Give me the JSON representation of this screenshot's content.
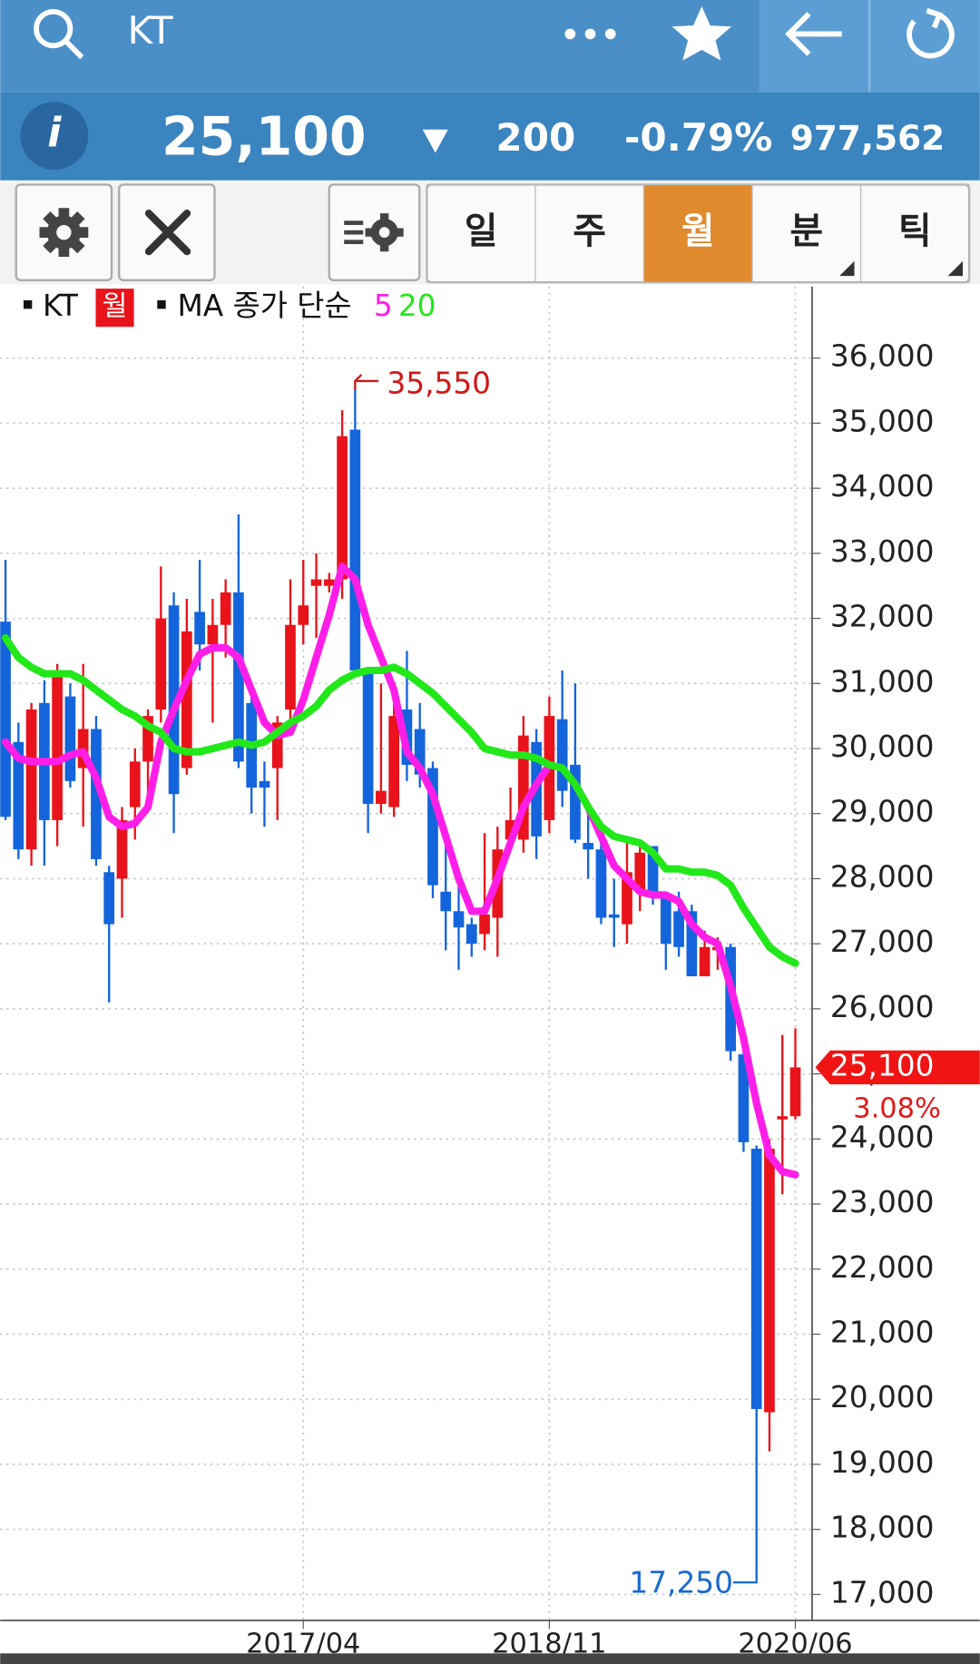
{
  "header": {
    "name": "KT",
    "price": "25,100",
    "change": "200",
    "change_pct": "-0.79%",
    "volume": "977,562"
  },
  "tabs": [
    "일",
    "주",
    "월",
    "분",
    "틱"
  ],
  "chart_data": {
    "type": "candlestick",
    "name": "KT",
    "period": "월",
    "ma_label": "MA 종가 단순",
    "categories": [
      null,
      null,
      null,
      null,
      null,
      null,
      null,
      null,
      null,
      null,
      null,
      null,
      null,
      null,
      null,
      null,
      null,
      null,
      null,
      null,
      null,
      null,
      null,
      "2017/04",
      null,
      null,
      null,
      null,
      null,
      null,
      null,
      null,
      null,
      null,
      null,
      null,
      null,
      null,
      null,
      null,
      null,
      null,
      "2018/11",
      null,
      null,
      null,
      null,
      null,
      null,
      null,
      null,
      null,
      null,
      null,
      null,
      null,
      null,
      null,
      null,
      null,
      null,
      "2020/06"
    ],
    "open": [
      31950,
      30100,
      28450,
      30700,
      28900,
      30800,
      29700,
      30300,
      28100,
      28000,
      29100,
      29800,
      30600,
      32200,
      29700,
      32100,
      31600,
      31900,
      32400,
      30700,
      29500,
      29700,
      30600,
      31900,
      32500,
      32500,
      32600,
      34900,
      31200,
      29150,
      29100,
      30600,
      30300,
      29700,
      27800,
      27500,
      27300,
      27150,
      27400,
      28600,
      28600,
      30100,
      28900,
      30450,
      29750,
      28550,
      28450,
      27450,
      27300,
      27800,
      28500,
      27700,
      27500,
      27500,
      26500,
      26900,
      26950,
      25300,
      23850,
      19800,
      24300,
      24350
    ],
    "high": [
      32900,
      30400,
      30700,
      31050,
      31300,
      31000,
      31300,
      30500,
      28200,
      29100,
      30000,
      30600,
      32800,
      32400,
      32300,
      32900,
      32300,
      32600,
      33600,
      31000,
      29800,
      30500,
      32600,
      32900,
      33000,
      32700,
      35200,
      35550,
      31200,
      31000,
      30700,
      31500,
      30700,
      29800,
      28600,
      28000,
      27400,
      28700,
      28800,
      29400,
      30500,
      30300,
      30800,
      31200,
      31000,
      29000,
      28600,
      28000,
      28600,
      28600,
      28500,
      27800,
      27800,
      27600,
      27200,
      27100,
      27000,
      25400,
      23900,
      24000,
      25600,
      25700
    ],
    "low": [
      28900,
      28300,
      28200,
      28200,
      28500,
      29400,
      28800,
      28200,
      26100,
      27400,
      28600,
      29200,
      30400,
      28700,
      29600,
      31200,
      30400,
      31400,
      29700,
      29000,
      28800,
      28900,
      30300,
      31600,
      31700,
      32400,
      32300,
      31100,
      28700,
      29000,
      28950,
      29500,
      29400,
      27700,
      26900,
      26600,
      26800,
      26900,
      26800,
      28500,
      28400,
      28300,
      28700,
      29100,
      28550,
      28000,
      27300,
      26950,
      27000,
      27500,
      27600,
      26600,
      26800,
      26500,
      26500,
      26600,
      25200,
      23800,
      17250,
      19200,
      23150,
      24300
    ],
    "close": [
      28950,
      28450,
      30600,
      28900,
      31200,
      29500,
      30300,
      28300,
      27300,
      28900,
      29800,
      30500,
      32000,
      29300,
      31800,
      31600,
      31900,
      32400,
      29800,
      29400,
      29400,
      30400,
      31900,
      32200,
      32600,
      32600,
      34800,
      31200,
      29150,
      29350,
      30500,
      29750,
      29600,
      27900,
      27500,
      27250,
      27000,
      27450,
      28450,
      28900,
      30200,
      28650,
      30500,
      29350,
      28600,
      28450,
      27400,
      27400,
      28100,
      28400,
      27750,
      27000,
      26950,
      26500,
      26950,
      26950,
      25350,
      23950,
      19850,
      23850,
      24350,
      25100
    ],
    "up_color": "#e8131b",
    "down_color": "#1464dc",
    "series": [
      {
        "name": "5",
        "color": "#ff1ee8",
        "values": [
          30100,
          29850,
          29800,
          29800,
          29800,
          29900,
          29950,
          29550,
          28950,
          28800,
          28850,
          29100,
          30100,
          30600,
          31050,
          31450,
          31550,
          31550,
          31400,
          30900,
          30400,
          30200,
          30250,
          30750,
          31400,
          32050,
          32800,
          32600,
          31900,
          31400,
          30900,
          29950,
          29700,
          29300,
          28650,
          28000,
          27500,
          27500,
          28000,
          28550,
          29100,
          29450,
          29750,
          29700,
          29450,
          29100,
          28650,
          28200,
          28000,
          27800,
          27750,
          27750,
          27650,
          27300,
          27100,
          27000,
          26350,
          25550,
          24550,
          23750,
          23500,
          23450
        ]
      },
      {
        "name": "20",
        "color": "#22e81a",
        "values": [
          31700,
          31400,
          31250,
          31150,
          31150,
          31150,
          31050,
          30900,
          30750,
          30600,
          30500,
          30350,
          30250,
          30000,
          29950,
          29950,
          30000,
          30050,
          30100,
          30050,
          30100,
          30250,
          30400,
          30500,
          30650,
          30900,
          31050,
          31150,
          31200,
          31200,
          31250,
          31150,
          31000,
          30850,
          30650,
          30450,
          30250,
          30000,
          29950,
          29900,
          29900,
          29850,
          29750,
          29700,
          29450,
          29100,
          28800,
          28650,
          28600,
          28550,
          28400,
          28150,
          28150,
          28100,
          28100,
          28050,
          27900,
          27550,
          27250,
          26950,
          26800,
          26700
        ]
      }
    ],
    "ylim": [
      16600,
      37100
    ],
    "yticks": [
      {
        "value": 17000,
        "label": "17,000"
      },
      {
        "value": 18000,
        "label": "18,000"
      },
      {
        "value": 19000,
        "label": "19,000"
      },
      {
        "value": 20000,
        "label": "20,000"
      },
      {
        "value": 21000,
        "label": "21,000"
      },
      {
        "value": 22000,
        "label": "22,000"
      },
      {
        "value": 23000,
        "label": "23,000"
      },
      {
        "value": 24000,
        "label": "24,000"
      },
      {
        "value": 25000,
        "label": "25,000"
      },
      {
        "value": 26000,
        "label": "26,000"
      },
      {
        "value": 27000,
        "label": "27,000"
      },
      {
        "value": 28000,
        "label": "28,000"
      },
      {
        "value": 29000,
        "label": "29,000"
      },
      {
        "value": 30000,
        "label": "30,000"
      },
      {
        "value": 31000,
        "label": "31,000"
      },
      {
        "value": 32000,
        "label": "32,000"
      },
      {
        "value": 33000,
        "label": "33,000"
      },
      {
        "value": 34000,
        "label": "34,000"
      },
      {
        "value": 35000,
        "label": "35,000"
      },
      {
        "value": 36000,
        "label": "36,000"
      }
    ],
    "grid": true,
    "max_label": {
      "value": 35550,
      "label": "35,550"
    },
    "min_label": {
      "value": 17250,
      "label": "17,250"
    },
    "last_label": {
      "value": 25100,
      "label": "25,100"
    },
    "change_label": {
      "value": 3.08,
      "label": "3.08%"
    }
  }
}
